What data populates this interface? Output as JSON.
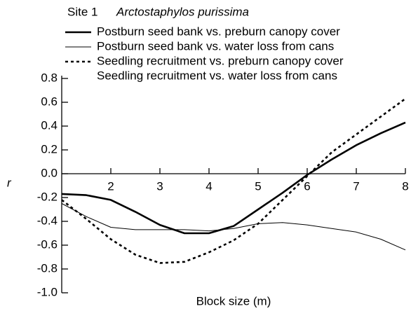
{
  "chart_data": {
    "type": "line",
    "title": "Site 1",
    "subtitle": "Arctostaphylos purissima",
    "xlabel": "Block size (m)",
    "ylabel": "r",
    "x": [
      1,
      1.5,
      2,
      2.5,
      3,
      3.5,
      4,
      4.5,
      5,
      5.5,
      6,
      6.5,
      7,
      7.5,
      8
    ],
    "series": [
      {
        "name": "Postburn seed bank vs. preburn canopy cover",
        "color": "#000000",
        "style": "thick",
        "values": [
          -0.17,
          -0.18,
          -0.22,
          -0.32,
          -0.43,
          -0.5,
          -0.5,
          -0.44,
          -0.3,
          -0.16,
          -0.01,
          0.12,
          0.24,
          0.34,
          0.43
        ]
      },
      {
        "name": "Postburn seed bank vs. water loss from cans",
        "color": "#000000",
        "style": "thin",
        "values": [
          -0.25,
          -0.36,
          -0.45,
          -0.47,
          -0.47,
          -0.47,
          -0.48,
          -0.46,
          -0.42,
          -0.41,
          -0.43,
          -0.46,
          -0.49,
          -0.55,
          -0.64
        ]
      },
      {
        "name": "Seedling recruitment vs. preburn canopy cover",
        "color": "#000000",
        "style": "dotted",
        "values": [
          -0.22,
          -0.38,
          -0.55,
          -0.68,
          -0.75,
          -0.74,
          -0.66,
          -0.56,
          -0.42,
          -0.22,
          -0.02,
          0.18,
          0.33,
          0.48,
          0.63
        ]
      },
      {
        "name": "Seedling recruitment vs. water loss from cans",
        "color": "#000000",
        "style": "none",
        "values": [
          null,
          null,
          null,
          null,
          null,
          null,
          null,
          null,
          null,
          null,
          null,
          null,
          null,
          null,
          null
        ]
      }
    ],
    "xlim": [
      1,
      8
    ],
    "xticks": [
      2,
      3,
      4,
      5,
      6,
      7,
      8
    ],
    "ylim": [
      -1,
      0.8
    ],
    "yticks": [
      0.8,
      0.6,
      0.4,
      0.2,
      {
        "value": 0,
        "label": "0.0"
      },
      -0.2,
      -0.4,
      -0.6,
      -0.8,
      {
        "value": -1,
        "label": "-1.0"
      }
    ],
    "grid": false
  }
}
